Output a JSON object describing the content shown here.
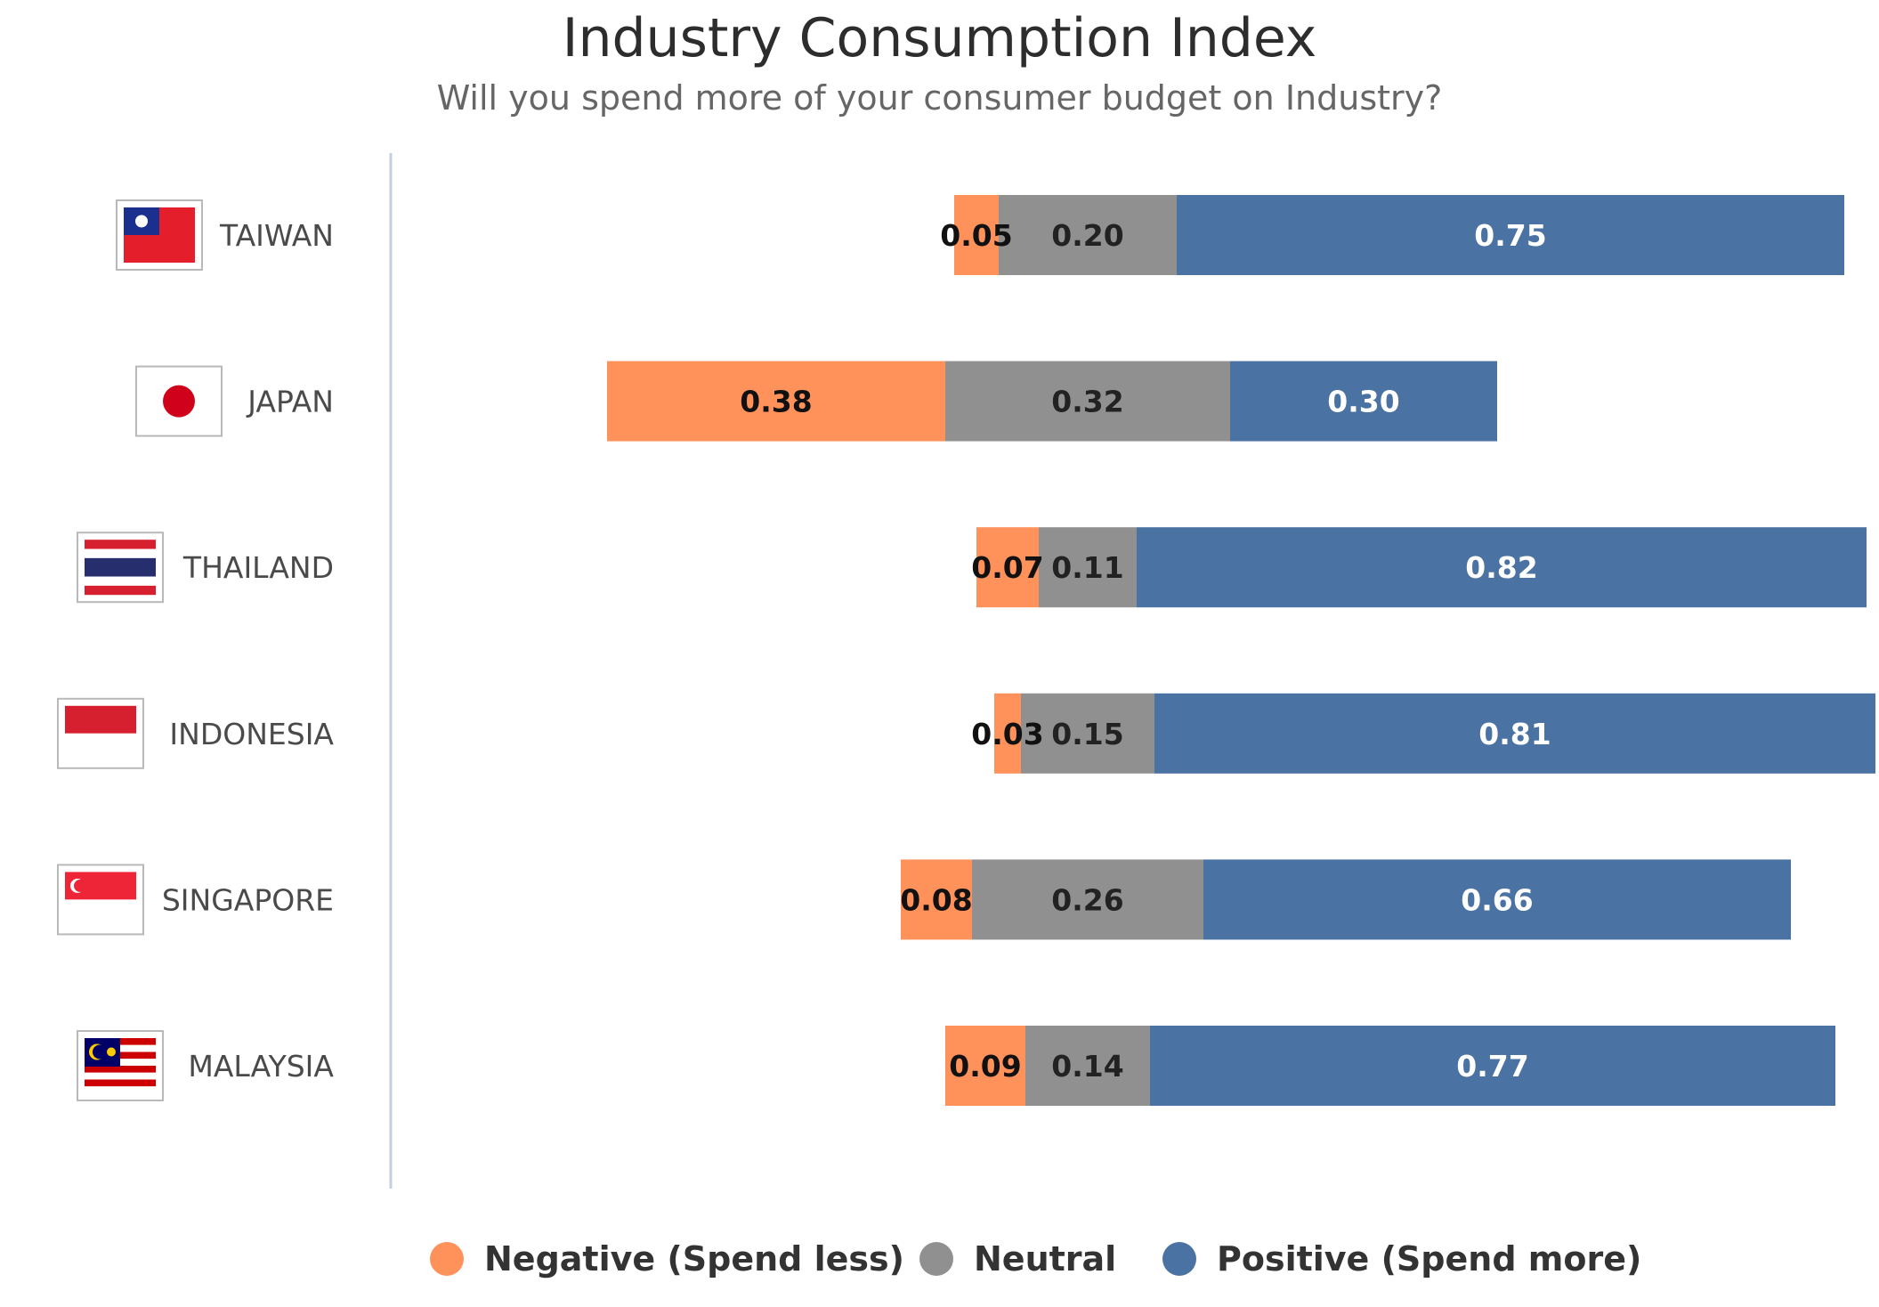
{
  "chart_data": {
    "type": "bar",
    "orientation": "horizontal",
    "stacked": true,
    "diverging": true,
    "title": "Industry Consumption Index",
    "subtitle": "Will you spend more of your consumer budget on Industry?",
    "categories": [
      "TAIWAN",
      "JAPAN",
      "THAILAND",
      "INDONESIA",
      "SINGAPORE",
      "MALAYSIA"
    ],
    "flag_icons": [
      "taiwan-flag-icon",
      "japan-flag-icon",
      "thailand-flag-icon",
      "indonesia-flag-icon",
      "singapore-flag-icon",
      "malaysia-flag-icon"
    ],
    "series": [
      {
        "name": "Negative (Spend less)",
        "color": "#ff915a",
        "label_color": "#111111",
        "values": [
          0.05,
          0.38,
          0.07,
          0.03,
          0.08,
          0.09
        ],
        "labels": [
          "0.05",
          "0.38",
          "0.07",
          "0.03",
          "0.08",
          "0.09"
        ]
      },
      {
        "name": "Neutral",
        "color": "#909090",
        "label_color": "#222222",
        "values": [
          0.2,
          0.32,
          0.11,
          0.15,
          0.26,
          0.14
        ],
        "labels": [
          "0.20",
          "0.32",
          "0.11",
          "0.15",
          "0.26",
          "0.14"
        ]
      },
      {
        "name": "Positive (Spend more)",
        "color": "#4a72a2",
        "label_color": "#ffffff",
        "values": [
          0.75,
          0.3,
          0.82,
          0.81,
          0.66,
          0.77
        ],
        "labels": [
          "0.75",
          "0.30",
          "0.82",
          "0.81",
          "0.66",
          "0.77"
        ]
      }
    ],
    "grid": false,
    "legend_position": "bottom"
  }
}
